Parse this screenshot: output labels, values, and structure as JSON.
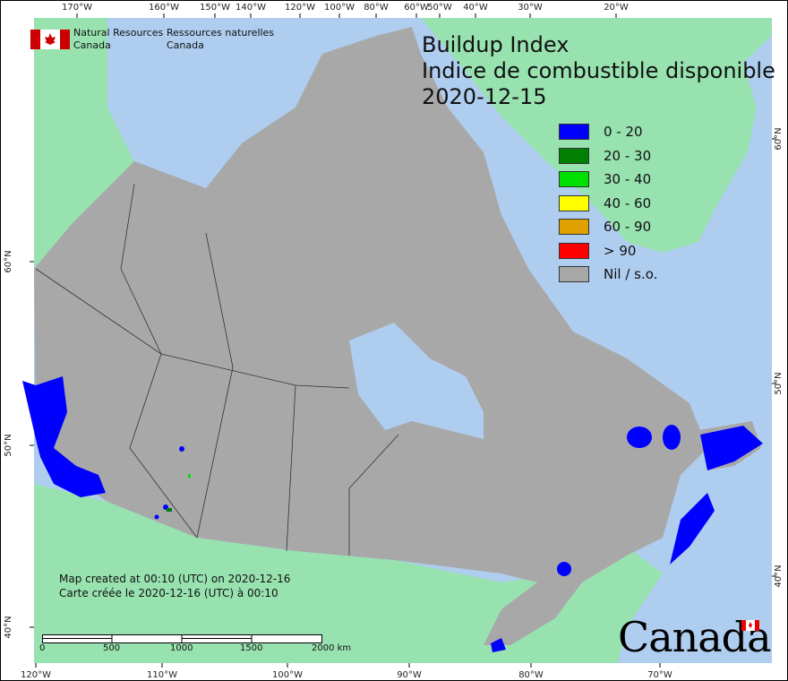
{
  "title": {
    "line1": "Buildup Index",
    "line2": "Indice de combustible disponible",
    "date": "2020-12-15"
  },
  "agency": {
    "name_en_1": "Natural Resources",
    "name_en_2": "Canada",
    "name_fr_1": "Ressources naturelles",
    "name_fr_2": "Canada",
    "logo": "canada-flag-icon"
  },
  "legend": [
    {
      "label": "0 - 20",
      "color": "#0000ff"
    },
    {
      "label": "20 - 30",
      "color": "#007f00"
    },
    {
      "label": "30 - 40",
      "color": "#00e000"
    },
    {
      "label": "40 - 60",
      "color": "#ffff00"
    },
    {
      "label": "60 - 90",
      "color": "#e0a000"
    },
    {
      "label": "> 90",
      "color": "#ff0000"
    },
    {
      "label": "Nil / s.o.",
      "color": "#a8a8a8"
    }
  ],
  "created": {
    "en": "Map created at 00:10 (UTC) on 2020-12-16",
    "fr": "Carte créée le 2020-12-16 (UTC) à 00:10"
  },
  "scale_bar": {
    "labels": [
      "0",
      "500",
      "1000",
      "1500",
      "2000  km"
    ]
  },
  "graticule": {
    "top": [
      "170°W",
      "160°W",
      "150°W",
      "140°W",
      "120°W",
      "100°W",
      "80°W",
      "60°W",
      "50°W",
      "40°W",
      "30°W",
      "20°W"
    ],
    "bottom": [
      "120°W",
      "110°W",
      "100°W",
      "90°W",
      "80°W",
      "70°W"
    ],
    "left": [
      "60°N",
      "50°N",
      "40°N"
    ],
    "right": [
      "60°N",
      "50°N",
      "40°N"
    ]
  },
  "wordmark": "Canada",
  "colors": {
    "water": "#aecdef",
    "foreign_land": "#98e2b0",
    "nil": "#a8a8a8",
    "low": "#0000ff"
  }
}
